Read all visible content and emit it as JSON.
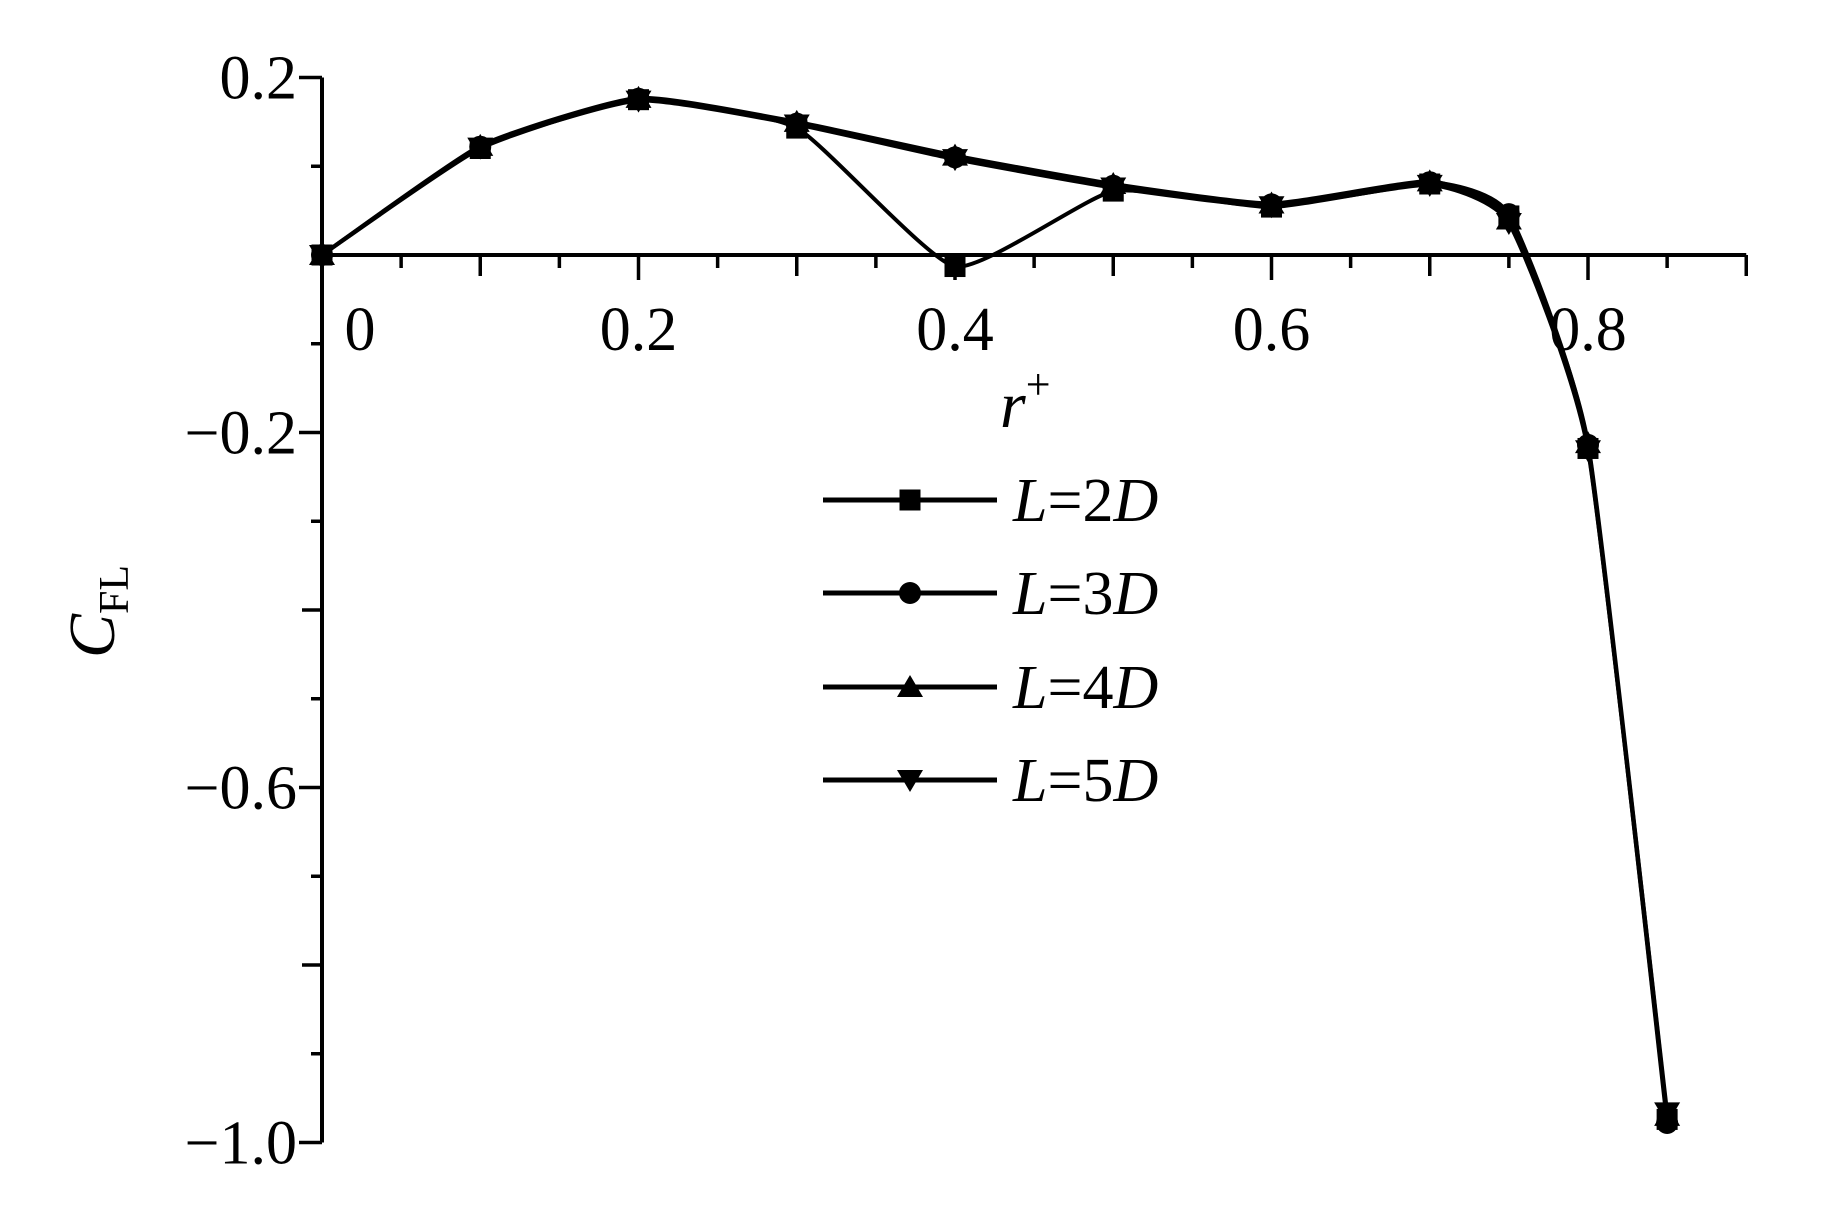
{
  "figure": {
    "background": "#ffffff",
    "ink_color": "#000000"
  },
  "chart_data": {
    "type": "line",
    "title": "",
    "xlabel": {
      "base": "r",
      "superscript": "+"
    },
    "ylabel": {
      "base": "C",
      "subscript": "FL"
    },
    "xlim": [
      0,
      0.9
    ],
    "ylim": [
      -1.0,
      0.2
    ],
    "grid": false,
    "x": [
      0,
      0.1,
      0.2,
      0.3,
      0.4,
      0.5,
      0.6,
      0.7,
      0.75,
      0.8,
      0.85
    ],
    "series": [
      {
        "name": "L=2D",
        "marker": "square",
        "color": "#000000",
        "values": [
          0,
          0.12,
          0.175,
          0.143,
          -0.013,
          0.072,
          0.054,
          0.08,
          0.044,
          -0.218,
          -0.974
        ]
      },
      {
        "name": "L=3D",
        "marker": "circle",
        "color": "#000000",
        "values": [
          0,
          0.122,
          0.176,
          0.148,
          0.11,
          0.078,
          0.057,
          0.082,
          0.046,
          -0.214,
          -0.978
        ]
      },
      {
        "name": "L=4D",
        "marker": "triangle-up",
        "color": "#000000",
        "values": [
          0,
          0.123,
          0.177,
          0.15,
          0.112,
          0.08,
          0.058,
          0.083,
          0.04,
          -0.212,
          -0.97
        ]
      },
      {
        "name": "L=5D",
        "marker": "triangle-down",
        "color": "#000000",
        "values": [
          0,
          0.121,
          0.174,
          0.147,
          0.108,
          0.076,
          0.055,
          0.079,
          0.036,
          -0.22,
          -0.966
        ]
      }
    ],
    "x_ticks": {
      "labeled": [
        0.2,
        0.4,
        0.6,
        0.8
      ],
      "medium": [
        0.1,
        0.3,
        0.5,
        0.7,
        0.9
      ],
      "minor": [
        0.05,
        0.15,
        0.25,
        0.35,
        0.45,
        0.55,
        0.65,
        0.75,
        0.85
      ]
    },
    "x_tick_labels": [
      {
        "value": 0,
        "text": "0"
      },
      {
        "value": 0.2,
        "text": "0.2"
      },
      {
        "value": 0.4,
        "text": "0.4"
      },
      {
        "value": 0.6,
        "text": "0.6"
      },
      {
        "value": 0.8,
        "text": "0.8"
      }
    ],
    "y_ticks": {
      "labeled": [
        0.2,
        -0.2,
        -0.6,
        -1.0
      ],
      "medium": [
        -0.4,
        -0.8
      ],
      "minor": [
        0.1,
        -0.1,
        -0.3,
        -0.5,
        -0.7,
        -0.9
      ]
    },
    "y_tick_labels": [
      {
        "value": 0.2,
        "text": "0.2"
      },
      {
        "value": -0.2,
        "text": "−0.2"
      },
      {
        "value": -0.6,
        "text": "−0.6"
      },
      {
        "value": -1.0,
        "text": "−1.0"
      }
    ],
    "legend": {
      "position": "center-under-x-title",
      "entries": [
        "L=2D",
        "L=3D",
        "L=4D",
        "L=5D"
      ]
    }
  }
}
